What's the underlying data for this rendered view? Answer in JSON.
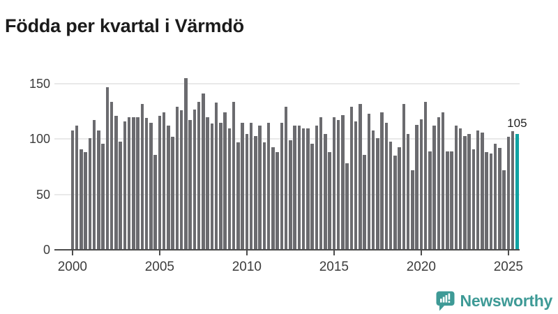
{
  "title": "Födda per kvartal i Värmdö",
  "chart_data": {
    "type": "bar",
    "title": "Födda per kvartal i Värmdö",
    "x_start": "2000-Q1",
    "x_end": "2025-Q3",
    "x_tick_labels": [
      "2000",
      "2005",
      "2010",
      "2015",
      "2020",
      "2025"
    ],
    "y_ticks": [
      0,
      50,
      100,
      150
    ],
    "y_tick_labels": [
      "0",
      "50",
      "100",
      "150"
    ],
    "ylim": [
      0,
      160
    ],
    "grid": true,
    "legend": "none",
    "bar_color": "#6b6b6f",
    "highlight": {
      "index": 102,
      "quarter": "2025-Q3",
      "value": 105,
      "label": "105",
      "color": "#11a2a2"
    },
    "values": [
      108,
      112,
      91,
      88,
      101,
      117,
      108,
      96,
      147,
      134,
      121,
      98,
      116,
      120,
      120,
      120,
      132,
      119,
      115,
      86,
      121,
      124,
      112,
      102,
      129,
      126,
      155,
      117,
      127,
      134,
      141,
      120,
      114,
      133,
      115,
      124,
      110,
      134,
      97,
      115,
      105,
      115,
      103,
      112,
      97,
      115,
      93,
      88,
      115,
      129,
      99,
      112,
      112,
      110,
      110,
      96,
      112,
      120,
      105,
      88,
      120,
      117,
      122,
      78,
      129,
      116,
      132,
      86,
      123,
      108,
      101,
      124,
      115,
      98,
      85,
      93,
      132,
      105,
      72,
      113,
      118,
      134,
      89,
      112,
      120,
      124,
      89,
      89,
      112,
      110,
      103,
      105,
      91,
      108,
      106,
      88,
      87,
      96,
      92,
      72,
      102,
      107,
      105
    ]
  },
  "logo": {
    "text": "Newsworthy",
    "color": "#3e9a96"
  }
}
